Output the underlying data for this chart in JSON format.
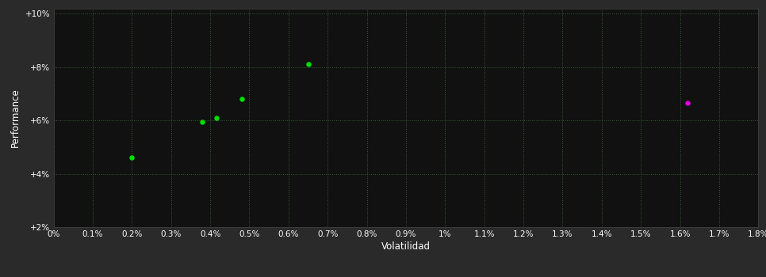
{
  "xlabel": "Volatilidad",
  "ylabel": "Performance",
  "bg_outer": "#2a2a2a",
  "bg_inner": "#111111",
  "text_color": "#ffffff",
  "grid_color": "#3a5a3a",
  "green_points": [
    [
      0.002,
      0.046
    ],
    [
      0.0038,
      0.0595
    ],
    [
      0.00415,
      0.061
    ],
    [
      0.0048,
      0.068
    ],
    [
      0.0065,
      0.081
    ]
  ],
  "magenta_points": [
    [
      0.0162,
      0.0665
    ]
  ],
  "xlim": [
    0.0,
    0.018
  ],
  "ylim": [
    0.02,
    0.102
  ],
  "xticks": [
    0.0,
    0.001,
    0.002,
    0.003,
    0.004,
    0.005,
    0.006,
    0.007,
    0.008,
    0.009,
    0.01,
    0.011,
    0.012,
    0.013,
    0.014,
    0.015,
    0.016,
    0.017,
    0.018
  ],
  "xtick_labels": [
    "0%",
    "0.1%",
    "0.2%",
    "0.3%",
    "0.4%",
    "0.5%",
    "0.6%",
    "0.7%",
    "0.8%",
    "0.9%",
    "1%",
    "1.1%",
    "1.2%",
    "1.3%",
    "1.4%",
    "1.5%",
    "1.6%",
    "1.7%",
    "1.8%"
  ],
  "yticks": [
    0.02,
    0.04,
    0.06,
    0.08,
    0.1
  ],
  "ytick_labels": [
    "+2%",
    "+4%",
    "+6%",
    "+8%",
    "+10%"
  ],
  "marker_size": 22
}
